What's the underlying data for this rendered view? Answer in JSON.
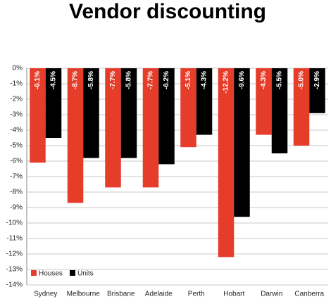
{
  "chart_data": {
    "type": "bar",
    "title": "Vendor discounting",
    "categories": [
      "Sydney",
      "Melbourne",
      "Brisbane",
      "Adelaide",
      "Perth",
      "Hobart",
      "Darwin",
      "Canberra"
    ],
    "series": [
      {
        "name": "Houses",
        "color": "#e63c2a",
        "values": [
          -6.1,
          -8.7,
          -7.7,
          -7.7,
          -5.1,
          -12.2,
          -4.3,
          -5.0
        ],
        "value_labels": [
          "-6.1%",
          "-8.7%",
          "-7.7%",
          "-7.7%",
          "-5.1%",
          "-12.2%",
          "-4.3%",
          "-5.0%"
        ]
      },
      {
        "name": "Units",
        "color": "#000000",
        "values": [
          -4.5,
          -5.8,
          -5.8,
          -6.2,
          -4.3,
          -9.6,
          -5.5,
          -2.9
        ],
        "value_labels": [
          "-4.5%",
          "-5.8%",
          "-5.8%",
          "-6.2%",
          "-4.3%",
          "-9.6%",
          "-5.5%",
          "-2.9%"
        ]
      }
    ],
    "ylim": [
      -14,
      0
    ],
    "yticks": [
      {
        "value": 0,
        "label": "0%"
      },
      {
        "value": -1,
        "label": "-1%"
      },
      {
        "value": -2,
        "label": "-2%"
      },
      {
        "value": -3,
        "label": "-3%"
      },
      {
        "value": -4,
        "label": "-4%"
      },
      {
        "value": -5,
        "label": "-5%"
      },
      {
        "value": -6,
        "label": "-6%"
      },
      {
        "value": -7,
        "label": "-7%"
      },
      {
        "value": -8,
        "label": "-8%"
      },
      {
        "value": -9,
        "label": "-9%"
      },
      {
        "value": -10,
        "label": "-10%"
      },
      {
        "value": -11,
        "label": "-11%"
      },
      {
        "value": -12,
        "label": "-12%"
      },
      {
        "value": -13,
        "label": "-13%"
      },
      {
        "value": -14,
        "label": "-14%"
      }
    ],
    "grid": true
  }
}
